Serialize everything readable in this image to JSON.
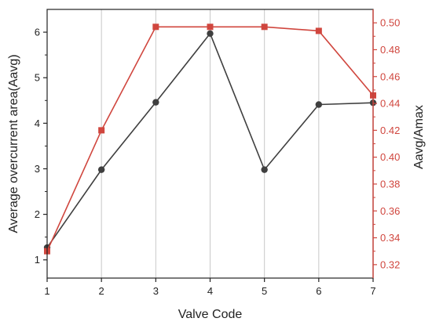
{
  "chart_data": {
    "type": "line",
    "xlabel": "Valve Code",
    "ylabel_left": "Average overcurrent area(Aavg)",
    "ylabel_right": "Aavg/Amax",
    "x": [
      1,
      2,
      3,
      4,
      5,
      6,
      7
    ],
    "x_ticks": [
      "1",
      "2",
      "3",
      "4",
      "5",
      "6",
      "7"
    ],
    "xlim": [
      1,
      7
    ],
    "ylim_left": [
      0.6,
      6.5
    ],
    "y_ticks_left": [
      "1",
      "2",
      "3",
      "4",
      "5",
      "6"
    ],
    "ylim_right": [
      0.31,
      0.51
    ],
    "y_ticks_right": [
      "0.32",
      "0.34",
      "0.36",
      "0.38",
      "0.40",
      "0.42",
      "0.44",
      "0.46",
      "0.48",
      "0.50"
    ],
    "vertical_grid": true,
    "series": [
      {
        "axis": "left",
        "color": "#3f3f3f",
        "marker": "circle",
        "values": [
          1.27,
          2.98,
          4.46,
          5.97,
          2.98,
          4.41,
          4.45
        ]
      },
      {
        "axis": "right",
        "color": "#d0463e",
        "marker": "square",
        "values": [
          0.33,
          0.42,
          0.497,
          0.497,
          0.497,
          0.494,
          0.446
        ]
      }
    ],
    "colors": {
      "left_axis": "#222222",
      "right_axis": "#d0463e",
      "grid": "#c8c8c8"
    }
  }
}
